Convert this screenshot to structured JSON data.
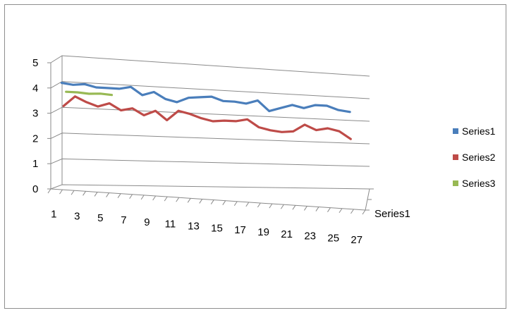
{
  "chart_data": {
    "type": "line",
    "view": "3d-perspective",
    "title": "",
    "xlabel": "",
    "ylabel": "",
    "ylim": [
      0,
      5
    ],
    "yticks": [
      0,
      1,
      2,
      3,
      4,
      5
    ],
    "x": [
      1,
      2,
      3,
      4,
      5,
      6,
      7,
      8,
      9,
      10,
      11,
      12,
      13,
      14,
      15,
      16,
      17,
      18,
      19,
      20,
      21,
      22,
      23,
      24,
      25,
      26,
      27
    ],
    "xtick_labels": [
      "1",
      "3",
      "5",
      "7",
      "9",
      "11",
      "13",
      "15",
      "17",
      "19",
      "21",
      "23",
      "25",
      "27"
    ],
    "depth_labels": [
      "Series1"
    ],
    "grid": true,
    "legend": "right",
    "series": [
      {
        "name": "Series1",
        "color": "#4a7ebb",
        "values": [
          4.1,
          4.05,
          4.1,
          4.0,
          4.0,
          4.0,
          4.1,
          3.8,
          3.95,
          3.7,
          3.6,
          3.8,
          3.85,
          3.9,
          3.75,
          3.75,
          3.7,
          3.85,
          3.45,
          3.6,
          3.75,
          3.65,
          3.8,
          3.8,
          3.65,
          3.6,
          null
        ]
      },
      {
        "name": "Series2",
        "color": "#be4b48",
        "values": [
          3.15,
          3.55,
          3.35,
          3.2,
          3.35,
          3.1,
          3.2,
          2.95,
          3.15,
          2.8,
          3.2,
          3.1,
          2.95,
          2.85,
          2.9,
          2.9,
          3.0,
          2.7,
          2.6,
          2.55,
          2.6,
          2.9,
          2.7,
          2.8,
          2.7,
          2.4,
          null
        ]
      },
      {
        "name": "Series3",
        "color": "#98b954",
        "values": [
          3.65,
          3.65,
          3.62,
          3.65,
          3.62,
          null,
          null,
          null,
          null,
          null,
          null,
          null,
          null,
          null,
          null,
          null,
          null,
          null,
          null,
          null,
          null,
          null,
          null,
          null,
          null,
          null,
          null
        ]
      }
    ]
  }
}
